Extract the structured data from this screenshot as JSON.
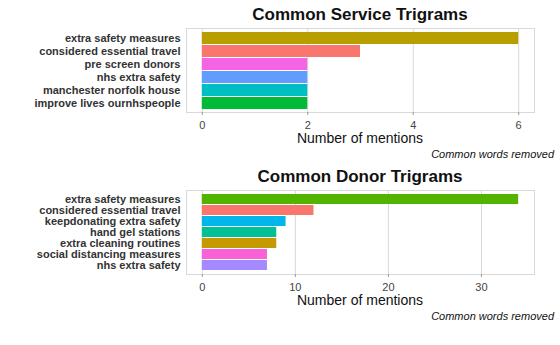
{
  "chart_data": [
    {
      "type": "bar",
      "orientation": "horizontal",
      "title": "Common Service Trigrams",
      "x_label": "Number of mentions",
      "caption": "Common words removed",
      "categories": [
        "extra safety measures",
        "considered essential travel",
        "pre screen donors",
        "nhs extra safety",
        "manchester norfolk house",
        "improve lives ournhspeople"
      ],
      "values": [
        6,
        3,
        2,
        2,
        2,
        2
      ],
      "colors": [
        "#B79F00",
        "#F8766D",
        "#F564E3",
        "#619CFF",
        "#00BFC4",
        "#00BA38"
      ],
      "xlim": [
        -0.3,
        6.3
      ],
      "xticks": [
        0,
        2,
        4,
        6
      ],
      "grid": true
    },
    {
      "type": "bar",
      "orientation": "horizontal",
      "title": "Common Donor Trigrams",
      "x_label": "Number of mentions",
      "caption": "Common words removed",
      "categories": [
        "extra safety measures",
        "considered essential travel",
        "keepdonating extra safety",
        "hand gel stations",
        "extra cleaning routines",
        "social distancing measures",
        "nhs extra safety"
      ],
      "values": [
        34,
        12,
        9,
        8,
        8,
        7,
        7
      ],
      "colors": [
        "#53B400",
        "#F8766D",
        "#00B6EB",
        "#00C094",
        "#C49A00",
        "#FB61D7",
        "#A58AFF"
      ],
      "xlim": [
        -1.7,
        35.7
      ],
      "xticks": [
        0,
        10,
        20,
        30
      ],
      "grid": true
    }
  ]
}
